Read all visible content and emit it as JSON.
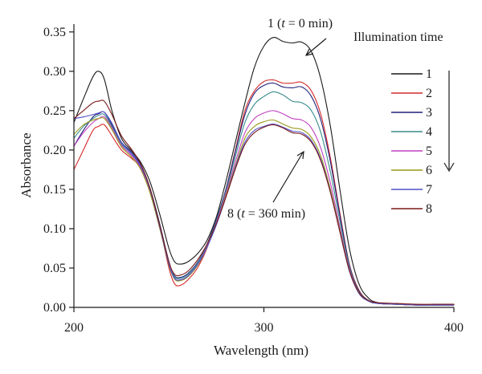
{
  "chart_data": {
    "type": "line",
    "xlabel": "Wavelength (nm)",
    "ylabel": "Absorbance",
    "xlim": [
      200,
      400
    ],
    "ylim": [
      0,
      0.36
    ],
    "xticks": [
      200,
      300,
      400
    ],
    "yticks": [
      0.0,
      0.05,
      0.1,
      0.15,
      0.2,
      0.25,
      0.3,
      0.35
    ],
    "grid": false,
    "legend_position": "right",
    "legend_title": "Illumination time",
    "annotations": {
      "top": {
        "prefix": "1 (",
        "t": "t",
        "suffix": " = 0 min)",
        "point": [
          313,
          0.335
        ]
      },
      "bottom": {
        "prefix": "8 (",
        "t": "t",
        "suffix": " =  360 min)",
        "point": [
          320,
          0.22
        ]
      }
    },
    "x": [
      200,
      205,
      210,
      213,
      216,
      220,
      225,
      230,
      235,
      240,
      245,
      250,
      253,
      256,
      260,
      265,
      270,
      275,
      280,
      285,
      290,
      295,
      300,
      305,
      310,
      315,
      320,
      325,
      330,
      335,
      340,
      345,
      350,
      355,
      360,
      370,
      380,
      390,
      400
    ],
    "series": [
      {
        "name": "1",
        "color": "#1a1a1a",
        "values": [
          0.235,
          0.265,
          0.293,
          0.3,
          0.29,
          0.25,
          0.215,
          0.2,
          0.185,
          0.16,
          0.12,
          0.075,
          0.058,
          0.055,
          0.058,
          0.068,
          0.085,
          0.115,
          0.16,
          0.21,
          0.26,
          0.305,
          0.332,
          0.343,
          0.338,
          0.336,
          0.337,
          0.325,
          0.29,
          0.23,
          0.15,
          0.075,
          0.03,
          0.012,
          0.006,
          0.004,
          0.003,
          0.003,
          0.003
        ]
      },
      {
        "name": "2",
        "color": "#d42a2a",
        "values": [
          0.175,
          0.2,
          0.225,
          0.23,
          0.232,
          0.218,
          0.2,
          0.19,
          0.178,
          0.15,
          0.105,
          0.05,
          0.03,
          0.028,
          0.035,
          0.05,
          0.075,
          0.11,
          0.15,
          0.2,
          0.25,
          0.275,
          0.287,
          0.289,
          0.285,
          0.285,
          0.286,
          0.275,
          0.245,
          0.19,
          0.12,
          0.055,
          0.022,
          0.009,
          0.005,
          0.004,
          0.003,
          0.003,
          0.003
        ]
      },
      {
        "name": "3",
        "color": "#20207a",
        "values": [
          0.205,
          0.225,
          0.242,
          0.246,
          0.248,
          0.232,
          0.21,
          0.198,
          0.182,
          0.152,
          0.108,
          0.058,
          0.04,
          0.038,
          0.043,
          0.057,
          0.08,
          0.112,
          0.15,
          0.198,
          0.245,
          0.272,
          0.282,
          0.285,
          0.28,
          0.279,
          0.28,
          0.268,
          0.238,
          0.185,
          0.117,
          0.054,
          0.021,
          0.009,
          0.005,
          0.004,
          0.003,
          0.003,
          0.003
        ]
      },
      {
        "name": "4",
        "color": "#3a8c8c",
        "values": [
          0.215,
          0.23,
          0.24,
          0.244,
          0.245,
          0.23,
          0.208,
          0.196,
          0.18,
          0.15,
          0.106,
          0.057,
          0.039,
          0.037,
          0.042,
          0.056,
          0.079,
          0.11,
          0.148,
          0.192,
          0.235,
          0.258,
          0.268,
          0.274,
          0.27,
          0.262,
          0.26,
          0.25,
          0.222,
          0.172,
          0.11,
          0.052,
          0.02,
          0.009,
          0.005,
          0.004,
          0.003,
          0.003,
          0.003
        ]
      },
      {
        "name": "5",
        "color": "#c040c0",
        "values": [
          0.205,
          0.222,
          0.235,
          0.24,
          0.242,
          0.228,
          0.206,
          0.194,
          0.178,
          0.148,
          0.104,
          0.055,
          0.037,
          0.035,
          0.04,
          0.054,
          0.077,
          0.108,
          0.145,
          0.185,
          0.222,
          0.24,
          0.247,
          0.25,
          0.246,
          0.24,
          0.238,
          0.228,
          0.202,
          0.158,
          0.102,
          0.049,
          0.019,
          0.008,
          0.005,
          0.004,
          0.003,
          0.003,
          0.003
        ]
      },
      {
        "name": "6",
        "color": "#9a9a1a",
        "values": [
          0.22,
          0.232,
          0.238,
          0.24,
          0.24,
          0.226,
          0.204,
          0.192,
          0.176,
          0.146,
          0.102,
          0.054,
          0.036,
          0.034,
          0.039,
          0.053,
          0.076,
          0.106,
          0.142,
          0.18,
          0.215,
          0.23,
          0.236,
          0.238,
          0.233,
          0.228,
          0.226,
          0.216,
          0.192,
          0.15,
          0.098,
          0.047,
          0.018,
          0.008,
          0.005,
          0.004,
          0.003,
          0.003,
          0.003
        ]
      },
      {
        "name": "7",
        "color": "#5050c8",
        "values": [
          0.24,
          0.242,
          0.245,
          0.247,
          0.248,
          0.234,
          0.21,
          0.196,
          0.18,
          0.15,
          0.104,
          0.055,
          0.037,
          0.035,
          0.04,
          0.054,
          0.076,
          0.105,
          0.14,
          0.178,
          0.21,
          0.225,
          0.23,
          0.233,
          0.229,
          0.224,
          0.222,
          0.212,
          0.188,
          0.147,
          0.096,
          0.046,
          0.018,
          0.008,
          0.005,
          0.004,
          0.003,
          0.003,
          0.003
        ]
      },
      {
        "name": "8",
        "color": "#7a1a1a",
        "values": [
          0.24,
          0.25,
          0.26,
          0.262,
          0.262,
          0.245,
          0.218,
          0.202,
          0.183,
          0.152,
          0.106,
          0.058,
          0.042,
          0.041,
          0.046,
          0.06,
          0.08,
          0.107,
          0.14,
          0.176,
          0.207,
          0.222,
          0.229,
          0.232,
          0.228,
          0.222,
          0.22,
          0.21,
          0.186,
          0.146,
          0.096,
          0.047,
          0.019,
          0.009,
          0.006,
          0.005,
          0.004,
          0.004,
          0.004
        ]
      }
    ]
  }
}
